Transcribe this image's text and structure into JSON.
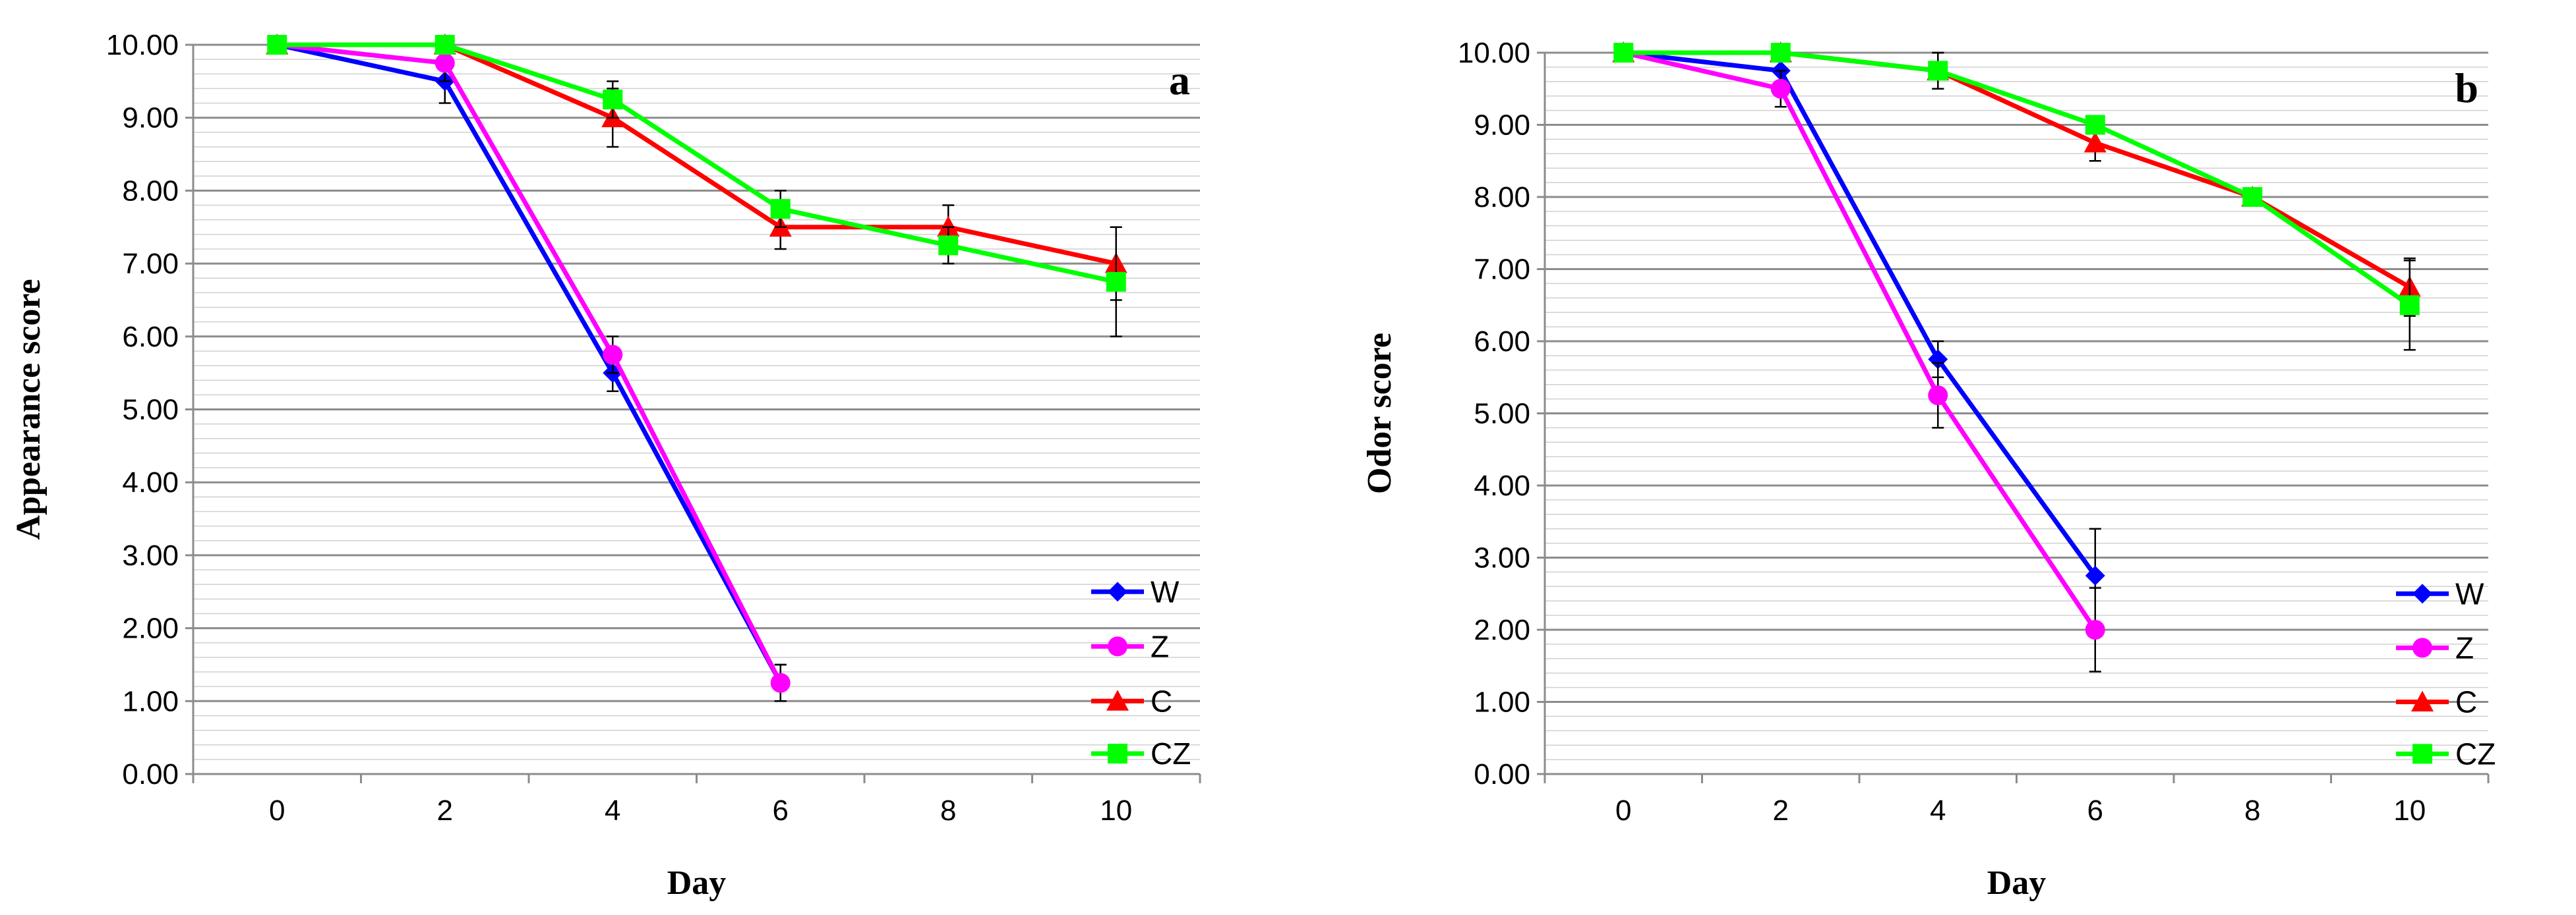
{
  "chart_data": [
    {
      "type": "line",
      "panel_label": "a",
      "xlabel": "Day",
      "ylabel": "Appearance score",
      "x": [
        0,
        2,
        4,
        6,
        8,
        10
      ],
      "x_tick_labels": [
        "0",
        "2",
        "4",
        "6",
        "8",
        "10"
      ],
      "ylim": [
        0,
        10
      ],
      "y_tick_labels": [
        "0.00",
        "1.00",
        "2.00",
        "3.00",
        "4.00",
        "5.00",
        "6.00",
        "7.00",
        "8.00",
        "9.00",
        "10.00"
      ],
      "grid": true,
      "legend_position": "bottom-right",
      "series": [
        {
          "name": "W",
          "color": "#0000ff",
          "marker": "diamond",
          "values": [
            10.0,
            9.5,
            5.5,
            1.25,
            null,
            null
          ],
          "errors": [
            0,
            0.3,
            0.25,
            0.25,
            null,
            null
          ]
        },
        {
          "name": "Z",
          "color": "#ff00ff",
          "marker": "circle",
          "values": [
            10.0,
            9.75,
            5.75,
            1.25,
            null,
            null
          ],
          "errors": [
            0,
            0.25,
            0.25,
            0.25,
            null,
            null
          ]
        },
        {
          "name": "C",
          "color": "#ff0000",
          "marker": "triangle",
          "values": [
            10.0,
            10.0,
            9.0,
            7.5,
            7.5,
            7.0
          ],
          "errors": [
            0,
            0,
            0.4,
            0.3,
            0.3,
            0.5
          ]
        },
        {
          "name": "CZ",
          "color": "#00ff00",
          "marker": "square",
          "values": [
            10.0,
            10.0,
            9.25,
            7.75,
            7.25,
            6.75
          ],
          "errors": [
            0,
            0,
            0.25,
            0.25,
            0.25,
            0.75
          ]
        }
      ]
    },
    {
      "type": "line",
      "panel_label": "b",
      "xlabel": "Day",
      "ylabel": "Odor score",
      "x": [
        0,
        2,
        4,
        6,
        8,
        10
      ],
      "x_tick_labels": [
        "0",
        "2",
        "4",
        "6",
        "8",
        "10"
      ],
      "ylim": [
        0,
        10
      ],
      "y_tick_labels": [
        "0.00",
        "1.00",
        "2.00",
        "3.00",
        "4.00",
        "5.00",
        "6.00",
        "7.00",
        "8.00",
        "9.00",
        "10.00"
      ],
      "grid": true,
      "legend_position": "bottom-right",
      "series": [
        {
          "name": "W",
          "color": "#0000ff",
          "marker": "diamond",
          "values": [
            10.0,
            9.75,
            5.75,
            2.75,
            null,
            null
          ],
          "errors": [
            0,
            0.25,
            0.25,
            0.65,
            null,
            null
          ]
        },
        {
          "name": "Z",
          "color": "#ff00ff",
          "marker": "circle",
          "values": [
            10.0,
            9.5,
            5.25,
            2.0,
            null,
            null
          ],
          "errors": [
            0,
            0.25,
            0.45,
            0.58,
            null,
            null
          ]
        },
        {
          "name": "C",
          "color": "#ff0000",
          "marker": "triangle",
          "values": [
            10.0,
            10.0,
            9.75,
            8.75,
            8.0,
            6.75
          ],
          "errors": [
            0,
            0,
            0.25,
            0.25,
            0,
            0.4
          ]
        },
        {
          "name": "CZ",
          "color": "#00ff00",
          "marker": "square",
          "values": [
            10.0,
            10.0,
            9.75,
            9.0,
            8.0,
            6.5
          ],
          "errors": [
            0,
            0,
            0.25,
            0,
            0,
            0.62
          ]
        }
      ]
    }
  ]
}
